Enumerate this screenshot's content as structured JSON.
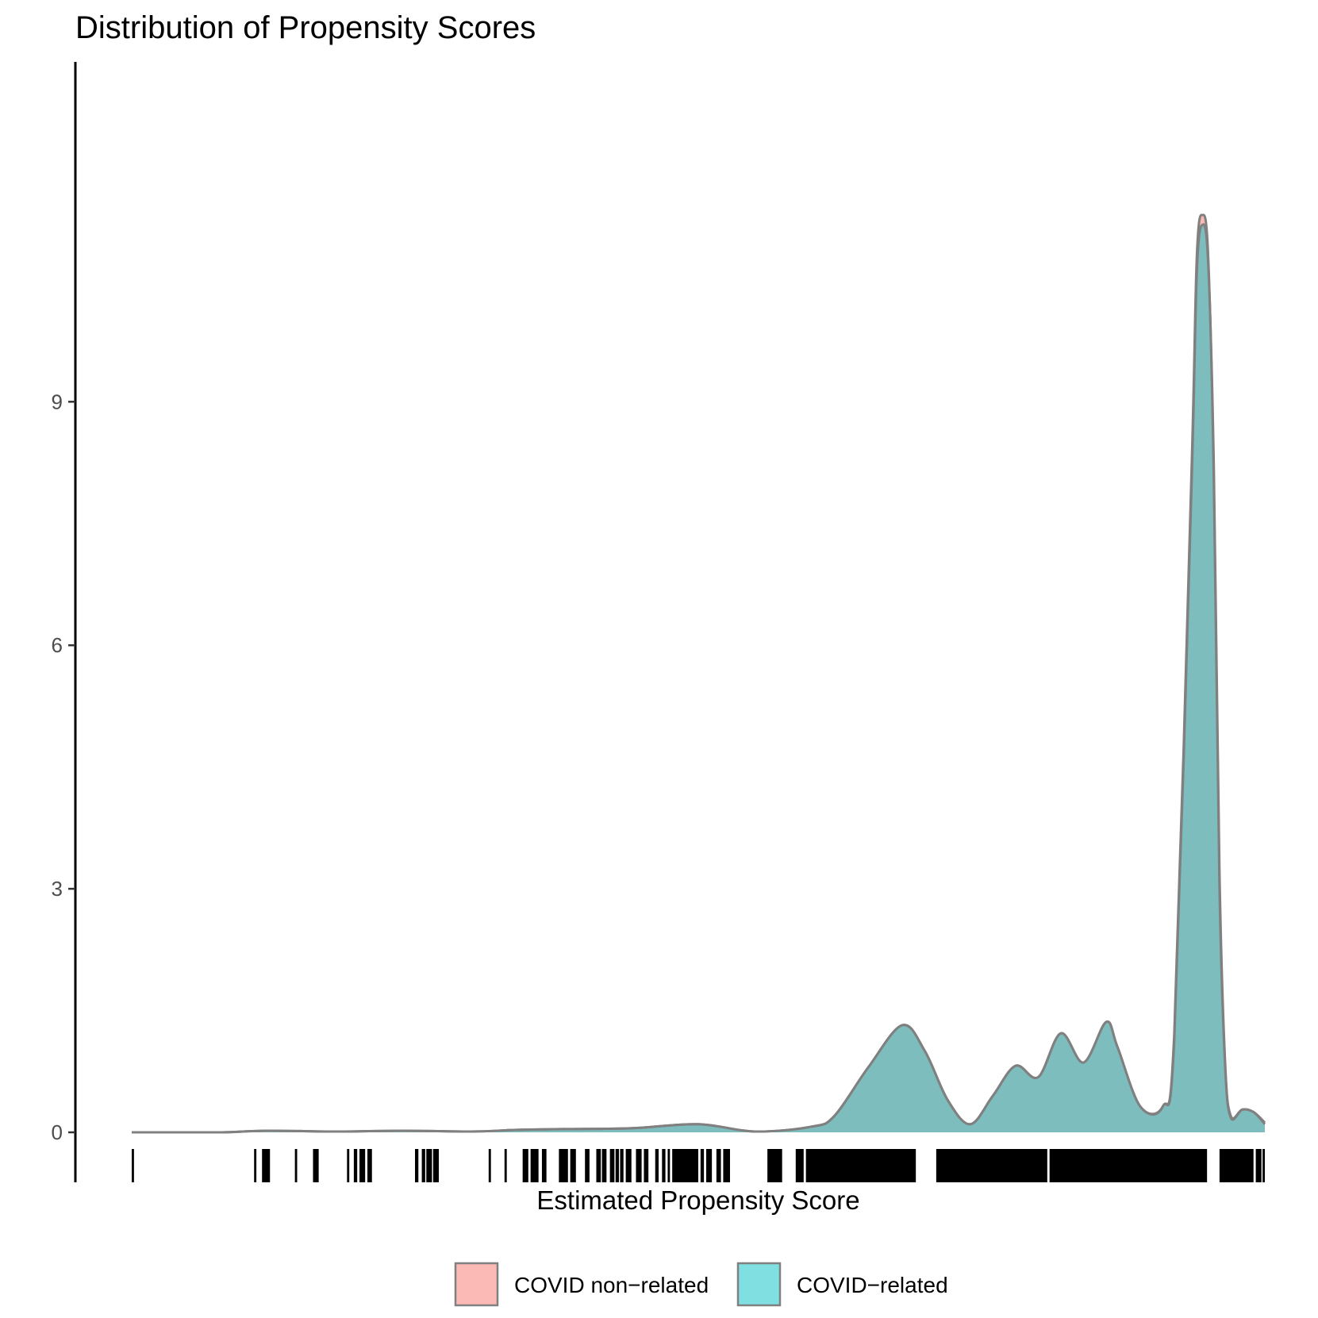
{
  "chart_data": {
    "type": "area",
    "title": "Distribution of Propensity Scores",
    "xlabel": "Estimated Propensity Score",
    "ylabel": "",
    "ylim": [
      0,
      12.5
    ],
    "xlim": [
      0,
      1
    ],
    "yticks": [
      0,
      3,
      6,
      9
    ],
    "yticklabels": [
      "0",
      "3",
      "6",
      "9"
    ],
    "grid": false,
    "legend_position": "bottom",
    "legend": [
      {
        "name": "COVID non−related",
        "color": "#F8766D"
      },
      {
        "name": "COVID−related",
        "color": "#00BFC4"
      }
    ],
    "series": [
      {
        "name": "COVID non−related",
        "color": "#F8766D",
        "x": [
          0.0,
          0.04,
          0.08,
          0.12,
          0.18,
          0.24,
          0.3,
          0.34,
          0.38,
          0.44,
          0.5,
          0.55,
          0.6,
          0.62,
          0.65,
          0.68,
          0.7,
          0.72,
          0.74,
          0.76,
          0.78,
          0.8,
          0.82,
          0.84,
          0.86,
          0.87,
          0.89,
          0.91,
          0.92,
          0.935,
          0.94,
          0.945,
          0.95,
          0.955,
          0.96,
          0.965,
          0.97,
          0.98,
          0.99,
          1.0
        ],
        "y": [
          0.0,
          0.0,
          0.0,
          0.02,
          0.01,
          0.02,
          0.01,
          0.03,
          0.04,
          0.05,
          0.1,
          0.01,
          0.07,
          0.2,
          0.8,
          1.32,
          1.0,
          0.4,
          0.1,
          0.45,
          0.82,
          0.68,
          1.22,
          0.86,
          1.36,
          1.05,
          0.32,
          0.32,
          1.2,
          8.0,
          10.8,
          11.3,
          10.8,
          8.0,
          3.0,
          0.8,
          0.18,
          0.28,
          0.25,
          0.12
        ]
      },
      {
        "name": "COVID−related",
        "color": "#00BFC4",
        "x": [
          0.0,
          0.04,
          0.08,
          0.12,
          0.18,
          0.24,
          0.3,
          0.34,
          0.38,
          0.44,
          0.5,
          0.55,
          0.6,
          0.62,
          0.65,
          0.68,
          0.7,
          0.72,
          0.74,
          0.76,
          0.78,
          0.8,
          0.82,
          0.84,
          0.86,
          0.87,
          0.89,
          0.91,
          0.92,
          0.935,
          0.94,
          0.945,
          0.95,
          0.955,
          0.96,
          0.965,
          0.97,
          0.98,
          0.99,
          1.0
        ],
        "y": [
          0.0,
          0.0,
          0.0,
          0.02,
          0.01,
          0.02,
          0.01,
          0.03,
          0.04,
          0.05,
          0.1,
          0.01,
          0.07,
          0.2,
          0.8,
          1.32,
          1.0,
          0.4,
          0.1,
          0.45,
          0.82,
          0.68,
          1.22,
          0.86,
          1.36,
          1.05,
          0.32,
          0.32,
          1.1,
          7.8,
          10.6,
          11.18,
          10.7,
          8.2,
          3.2,
          0.85,
          0.2,
          0.28,
          0.25,
          0.1
        ]
      }
    ],
    "rug": [
      [
        0.0,
        0.002
      ],
      [
        0.108,
        0.11
      ],
      [
        0.115,
        0.122
      ],
      [
        0.144,
        0.146
      ],
      [
        0.16,
        0.165
      ],
      [
        0.19,
        0.192
      ],
      [
        0.196,
        0.199
      ],
      [
        0.201,
        0.206
      ],
      [
        0.208,
        0.212
      ],
      [
        0.25,
        0.253
      ],
      [
        0.256,
        0.259
      ],
      [
        0.26,
        0.265
      ],
      [
        0.266,
        0.271
      ],
      [
        0.315,
        0.317
      ],
      [
        0.329,
        0.331
      ],
      [
        0.345,
        0.35
      ],
      [
        0.352,
        0.359
      ],
      [
        0.362,
        0.366
      ],
      [
        0.377,
        0.385
      ],
      [
        0.387,
        0.392
      ],
      [
        0.4,
        0.404
      ],
      [
        0.41,
        0.414
      ],
      [
        0.415,
        0.419
      ],
      [
        0.422,
        0.426
      ],
      [
        0.427,
        0.43
      ],
      [
        0.431,
        0.434
      ],
      [
        0.436,
        0.441
      ],
      [
        0.445,
        0.45
      ],
      [
        0.452,
        0.456
      ],
      [
        0.462,
        0.465
      ],
      [
        0.468,
        0.471
      ],
      [
        0.473,
        0.475
      ],
      [
        0.477,
        0.5
      ],
      [
        0.502,
        0.505
      ],
      [
        0.507,
        0.512
      ],
      [
        0.516,
        0.52
      ],
      [
        0.522,
        0.528
      ],
      [
        0.561,
        0.574
      ],
      [
        0.586,
        0.593
      ],
      [
        0.595,
        0.692
      ],
      [
        0.71,
        0.808
      ],
      [
        0.81,
        0.949
      ],
      [
        0.96,
        0.99
      ],
      [
        0.992,
        0.997
      ],
      [
        0.998,
        1.0
      ]
    ]
  }
}
